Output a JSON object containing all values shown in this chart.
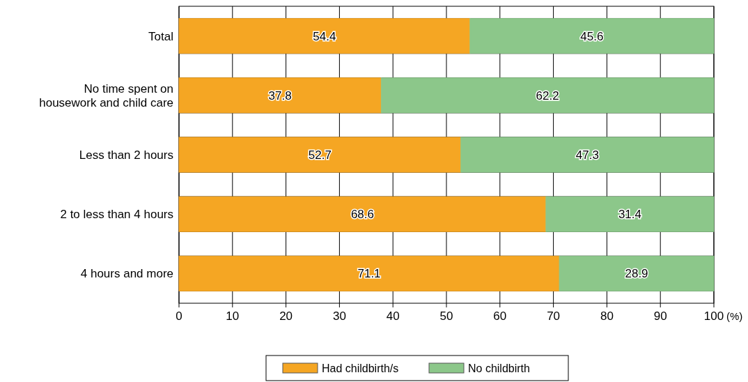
{
  "chart_data": {
    "type": "bar",
    "orientation": "horizontal",
    "stacked": true,
    "xlabel": "(%)",
    "categories": [
      "Total",
      "No time spent on\nhousework and child care",
      "Less than 2 hours",
      "2 to less than 4 hours",
      "4 hours and more"
    ],
    "series": [
      {
        "name": "Had childbirth/s",
        "color": "#f5a623",
        "values": [
          54.4,
          37.8,
          52.7,
          68.6,
          71.1
        ]
      },
      {
        "name": "No childbirth",
        "color": "#8cc78a",
        "values": [
          45.6,
          62.2,
          47.3,
          31.4,
          28.9
        ]
      }
    ],
    "xlim": [
      0,
      100
    ],
    "xticks": [
      0,
      10,
      20,
      30,
      40,
      50,
      60,
      70,
      80,
      90,
      100
    ],
    "grid": "x",
    "legend": "bottom",
    "data_labels": true
  }
}
